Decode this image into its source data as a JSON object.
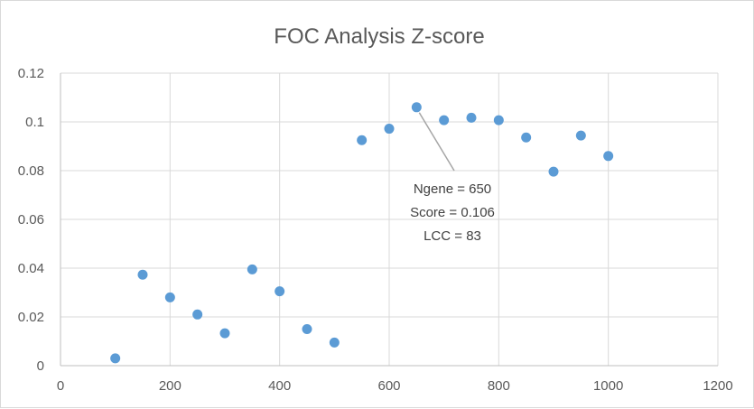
{
  "chart_data": {
    "type": "scatter",
    "title": "FOC Analysis Z-score",
    "xlabel": "",
    "ylabel": "",
    "xlim": [
      0,
      1200
    ],
    "ylim": [
      0,
      0.12
    ],
    "xticks": [
      "0",
      "200",
      "400",
      "600",
      "800",
      "1000",
      "1200"
    ],
    "yticks": [
      "0",
      "0.02",
      "0.04",
      "0.06",
      "0.08",
      "0.1",
      "0.12"
    ],
    "grid": "vertical-and-horizontal",
    "legend": "none",
    "marker_color": "#5b9bd5",
    "points": [
      {
        "x": 100,
        "y": 0.003
      },
      {
        "x": 150,
        "y": 0.0373
      },
      {
        "x": 200,
        "y": 0.028
      },
      {
        "x": 250,
        "y": 0.021
      },
      {
        "x": 300,
        "y": 0.0133
      },
      {
        "x": 350,
        "y": 0.0395
      },
      {
        "x": 400,
        "y": 0.0305
      },
      {
        "x": 450,
        "y": 0.015
      },
      {
        "x": 500,
        "y": 0.0095
      },
      {
        "x": 550,
        "y": 0.0925
      },
      {
        "x": 600,
        "y": 0.0972
      },
      {
        "x": 650,
        "y": 0.106
      },
      {
        "x": 700,
        "y": 0.1007
      },
      {
        "x": 750,
        "y": 0.1017
      },
      {
        "x": 800,
        "y": 0.1007
      },
      {
        "x": 850,
        "y": 0.0936
      },
      {
        "x": 900,
        "y": 0.0796
      },
      {
        "x": 950,
        "y": 0.0944
      },
      {
        "x": 1000,
        "y": 0.086
      }
    ],
    "annotation": {
      "x": 650,
      "y": 0.106,
      "lines": [
        "Ngene = 650",
        "Score = 0.106",
        "LCC = 83"
      ]
    }
  }
}
